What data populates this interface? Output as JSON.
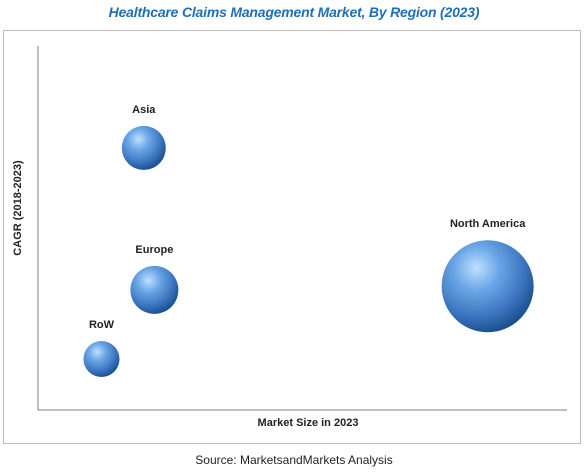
{
  "title": "Healthcare Claims Management Market, By Region (2023)",
  "source": "Source: MarketsandMarkets Analysis",
  "colors": {
    "title": "#1f6fb8",
    "bubble_light": "#9ccaf2",
    "bubble_mid": "#4f8fd6",
    "bubble_dark": "#1b4f8f",
    "axis": "#7f7f7f"
  },
  "chart_data": {
    "type": "scatter",
    "title": "Healthcare Claims Management Market, By Region (2023)",
    "xlabel": "Market Size in 2023",
    "ylabel": "CAGR (2018-2023)",
    "xlim": [
      0,
      100
    ],
    "ylim": [
      0,
      100
    ],
    "axis_ticks_shown": false,
    "grid": false,
    "legend": "none",
    "series": [
      {
        "name": "Asia",
        "x": 20,
        "y": 72,
        "size": 22
      },
      {
        "name": "Europe",
        "x": 22,
        "y": 33,
        "size": 24
      },
      {
        "name": "RoW",
        "x": 12,
        "y": 14,
        "size": 18
      },
      {
        "name": "North America",
        "x": 85,
        "y": 34,
        "size": 46
      }
    ]
  }
}
